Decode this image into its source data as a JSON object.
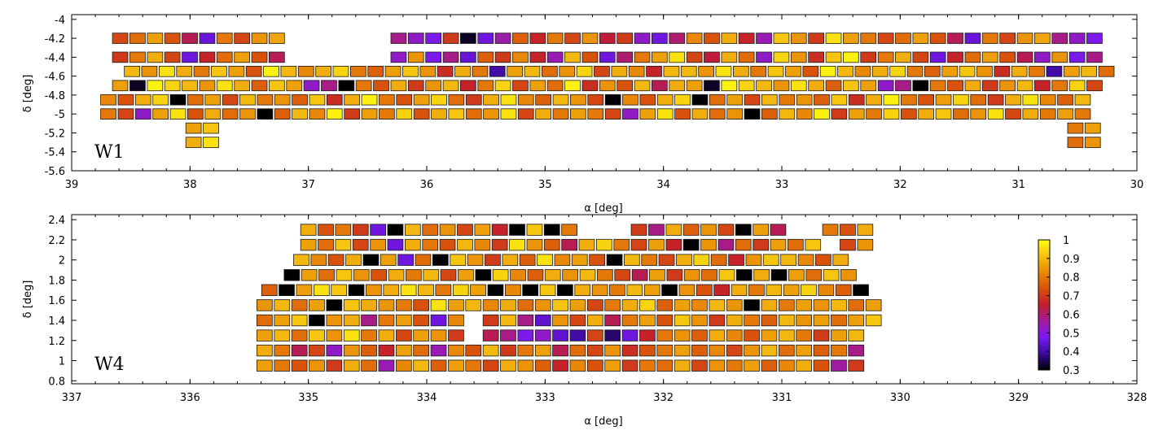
{
  "chart_data": [
    {
      "type": "heatmap",
      "panel": "W1",
      "field_label": "W1",
      "xlabel": "α  [deg]",
      "ylabel": "δ  [deg]",
      "xlim": [
        39,
        30
      ],
      "ylim": [
        -5.6,
        -3.95
      ],
      "x_reversed": true,
      "xticks": [
        39,
        38,
        37,
        36,
        35,
        34,
        33,
        32,
        31,
        30
      ],
      "yticks": [
        -4,
        -4.2,
        -4.4,
        -4.6,
        -4.8,
        -5,
        -5.2,
        -5.4,
        -5.6
      ],
      "cell_width_deg": 0.13,
      "cell_height_deg": 0.11,
      "rows": [
        {
          "dec": -4.2,
          "ra_start": 38.59,
          "ra_end": 30.29,
          "ra_step": 0.147,
          "gaps": [
            [
              37.15,
              36.33
            ]
          ],
          "pattern": "0.72,0.78,0.86,0.74,0.62,0.45,0.80,0.72,0.84,0.87,0.58,0.52,0.48,0.70,0.32,0.46,0.55,0.76,0.66,0.80,0.72,0.84,0.64,0.70,0.52,0.46,0.60,0.82,0.74,0.88,0.66,0.54,0.92,0.84,0.70,0.96,0.86,0.80"
        },
        {
          "dec": -4.4,
          "ra_start": 38.59,
          "ra_end": 30.29,
          "ra_step": 0.147,
          "gaps": [
            [
              37.15,
              36.33
            ]
          ],
          "pattern": "0.70,0.80,0.88,0.72,0.46,0.66,0.78,0.86,0.74,0.62,0.52,0.84,0.48,0.58,0.45,0.76,0.70,0.82,0.66,0.54,0.90,0.74,0.46,0.60,0.80,0.86,0.96,0.72,0.64,0.88,0.78,0.52,0.94,0.84,0.68,0.92,0.98"
        },
        {
          "dec": -4.55,
          "ra_start": 38.49,
          "ra_end": 30.19,
          "ra_step": 0.147,
          "gaps": [],
          "pattern": "0.90,0.84,0.96,0.88,0.80,0.92,0.86,0.74,0.98,0.90,0.82,0.88,0.94,0.80,0.76,0.86,0.92,0.84,0.68,0.88,0.80,0.40,0.86,0.90,0.78,0.84,0.94,0.72,0.88,0.82,0.66,0.90"
        },
        {
          "dec": -4.7,
          "ra_start": 38.59,
          "ra_end": 30.29,
          "ra_step": 0.147,
          "gaps": [],
          "pattern": "0.86,0.32,0.98,0.94,0.90,0.84,0.96,0.88,0.76,0.92,0.86,0.52,0.58,0.30,0.80,0.74,0.88,0.70,0.84,0.90,0.66,0.80,0.94,0.72,0.86,0.78,0.98,0.68,0.84,0.74,0.90,0.62,0.88"
        },
        {
          "dec": -4.85,
          "ra_start": 38.69,
          "ra_end": 30.39,
          "ra_step": 0.147,
          "gaps": [],
          "pattern": "0.82,0.74,0.88,0.94,0.30,0.78,0.86,0.72,0.90,0.80,0.84,0.76,0.92,0.68,0.88,0.98,0.80,0.74,0.86,0.94,0.78,0.70,0.88,0.96,0.82,0.76,0.90,0.84,0.72,0.30"
        },
        {
          "dec": -5.0,
          "ra_start": 38.69,
          "ra_end": 30.39,
          "ra_step": 0.147,
          "gaps": [],
          "pattern": "0.80,0.72,0.52,0.86,0.96,0.74,0.88,0.78,0.84,0.30,0.76,0.90,0.82,0.98,0.70,0.86,0.80,0.94,0.74,0.88,0.92,0.78,0.84,0.96,0.72,0.88,0.80,0.86"
        },
        {
          "dec": -5.15,
          "ra_start": 37.97,
          "ra_end": 37.82,
          "ra_step": 0.147,
          "gaps": [],
          "pattern": "0.86,0.92"
        },
        {
          "dec": -5.15,
          "ra_start": 30.52,
          "ra_end": 30.37,
          "ra_step": 0.147,
          "gaps": [],
          "pattern": "0.80,0.86"
        },
        {
          "dec": -5.3,
          "ra_start": 37.97,
          "ra_end": 37.82,
          "ra_step": 0.147,
          "gaps": [],
          "pattern": "0.88,0.96"
        },
        {
          "dec": -5.3,
          "ra_start": 30.52,
          "ra_end": 30.37,
          "ra_step": 0.147,
          "gaps": [],
          "pattern": "0.78,0.84"
        }
      ]
    },
    {
      "type": "heatmap",
      "panel": "W4",
      "field_label": "W4",
      "xlabel": "α  [deg]",
      "ylabel": "δ  [deg]",
      "xlim": [
        337,
        328
      ],
      "ylim": [
        0.77,
        2.45
      ],
      "x_reversed": true,
      "xticks": [
        337,
        336,
        335,
        334,
        333,
        332,
        331,
        330,
        329,
        328
      ],
      "yticks": [
        2.4,
        2.2,
        2,
        1.8,
        1.6,
        1.4,
        1.2,
        1,
        0.8
      ],
      "cell_width_deg": 0.13,
      "cell_height_deg": 0.11,
      "rows": [
        {
          "dec": 2.3,
          "ra_start": 335.0,
          "ra_end": 330.33,
          "ra_step": 0.147,
          "gaps": [
            [
              332.75,
              332.35
            ],
            [
              331.0,
              330.65
            ]
          ],
          "pattern": "0.88,0.74,0.80,0.70,0.46,0.30,0.90,0.78,0.84,0.72,0.86,0.66,0.30,0.92,0.30,0.80,0.70,0.58,0.88,0.76,0.84,0.72,0.30,0.86,0.62,0.80,0.74"
        },
        {
          "dec": 2.15,
          "ra_start": 335.0,
          "ra_end": 330.33,
          "ra_step": 0.147,
          "gaps": [
            [
              332.35,
              332.25
            ],
            [
              330.65,
              330.55
            ]
          ],
          "pattern": "0.86,0.78,0.92,0.72,0.84,0.46,0.88,0.80,0.74,0.90,0.82,0.70,0.96,0.84,0.76,0.62,0.88,0.94,0.80,0.72,0.86,0.66,0.30,0.84,0.58,0.78,0.70"
        },
        {
          "dec": 2.0,
          "ra_start": 335.06,
          "ra_end": 330.55,
          "ra_step": 0.147,
          "gaps": [],
          "pattern": "0.90,0.82,0.74,0.88,0.30,0.86,0.46,0.78,0.30,0.92,0.84,0.70,0.88,0.76,0.96,0.82,0.86,0.74,0.30,0.90,0.80,0.72,0.88,0.94,0.78,0.66,0.84,0.92"
        },
        {
          "dec": 1.85,
          "ra_start": 335.14,
          "ra_end": 330.41,
          "ra_step": 0.147,
          "gaps": [],
          "pattern": "0.30,0.86,0.78,0.92,0.84,0.74,0.88,0.80,0.90,0.72,0.86,0.30,0.94,0.82,0.76,0.88,0.84,0.90,0.80,0.72,0.62,0.86,0.70,0.84,0.78,0.92,0.30,0.88"
        },
        {
          "dec": 1.7,
          "ra_start": 335.33,
          "ra_end": 330.4,
          "ra_step": 0.147,
          "gaps": [],
          "pattern": "0.76,0.30,0.86,0.96,0.92,0.30,0.84,0.88,0.96,0.90,0.80,0.94,0.86,0.30,0.82,0.30,0.92,0.30,0.88,0.84,0.80,0.90,0.86,0.30,0.84,0.74,0.66,0.88,0.80,0.90,0.86,0.94,0.82"
        },
        {
          "dec": 1.55,
          "ra_start": 335.37,
          "ra_end": 330.18,
          "ra_step": 0.147,
          "gaps": [],
          "pattern": "0.84,0.90,0.78,0.86,0.30,0.92,0.88,0.84,0.80,0.74,0.96,0.86,0.90,0.82,0.88,0.78,0.84,0.92,0.86,0.72,0.80,0.88,0.94,0.76,0.86,0.82,0.90,0.84,0.30,0.88,0.80,0.86"
        },
        {
          "dec": 1.4,
          "ra_start": 335.37,
          "ra_end": 330.18,
          "ra_step": 0.147,
          "gaps": [
            [
              333.75,
              333.6
            ]
          ],
          "pattern": "0.78,0.86,0.92,0.30,0.84,0.88,0.58,0.80,0.86,0.74,0.46,0.82,0.70,0.90,0.58,0.44,0.84,0.72,0.88,0.62,0.80,0.86,0.74,0.92,0.84,0.70,0.88,0.80,0.76,0.90,0.84,0.86"
        },
        {
          "dec": 1.25,
          "ra_start": 335.37,
          "ra_end": 330.32,
          "ra_step": 0.147,
          "gaps": [
            [
              333.75,
              333.6
            ]
          ],
          "pattern": "0.86,0.90,0.78,0.92,0.84,0.96,0.80,0.88,0.72,0.86,0.84,0.70,0.62,0.58,0.48,0.52,0.44,0.40,0.72,0.36,0.46,0.66,0.80,0.84,0.76,0.88,0.82,0.74,0.86,0.90,0.80,0.70"
        },
        {
          "dec": 1.1,
          "ra_start": 335.37,
          "ra_end": 330.32,
          "ra_step": 0.147,
          "gaps": [],
          "pattern": "0.88,0.80,0.62,0.72,0.52,0.84,0.76,0.66,0.86,0.78,0.54,0.82,0.74,0.90,0.70,0.80,0.86,0.62,0.78,0.72,0.84,0.68,0.74,0.80,0.86,0.76,0.82,0.72,0.84,0.90,0.78,0.86,0.76,0.80,0.58"
        },
        {
          "dec": 0.95,
          "ra_start": 335.37,
          "ra_end": 330.32,
          "ra_step": 0.147,
          "gaps": [],
          "pattern": "0.86,0.80,0.74,0.84,0.70,0.88,0.78,0.54,0.82,0.90,0.76,0.86,0.80,0.72,0.88,0.84,0.76,0.66,0.82,0.74,0.86,0.70,0.80,0.78,0.88,0.72,0.84,0.80,0.86,0.76,0.82,0.88,0.74,0.56,0.70"
        }
      ]
    }
  ],
  "colorbar": {
    "min": 0.3,
    "max": 1,
    "ticks": [
      "1",
      "0.9",
      "0.8",
      "0.7",
      "0.6",
      "0.5",
      "0.4",
      "0.3"
    ],
    "stops": [
      "#000000",
      "#3a0a9a",
      "#7a1af0",
      "#a21c9e",
      "#c21c2e",
      "#d8500c",
      "#e98a08",
      "#f5c010",
      "#ffff10"
    ]
  }
}
